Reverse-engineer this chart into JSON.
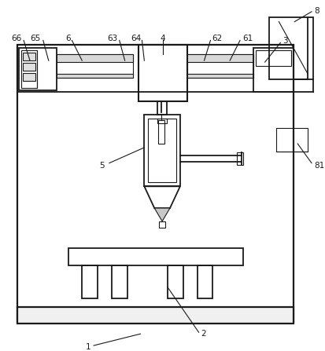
{
  "bg_color": "#ffffff",
  "line_color": "#1a1a1a",
  "lw": 1.3,
  "tlw": 0.8,
  "fig_width": 4.14,
  "fig_height": 4.47,
  "dpi": 100
}
